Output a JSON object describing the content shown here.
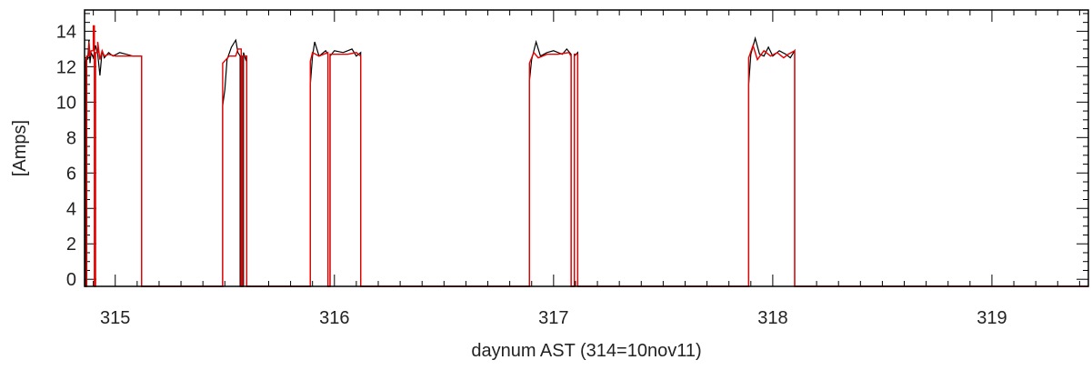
{
  "chart_data": {
    "type": "line",
    "title": "",
    "xlabel": "daynum AST (314=10nov11)",
    "ylabel": "[Amps]",
    "xlim": [
      314.86,
      319.44
    ],
    "ylim": [
      -0.4,
      15.2
    ],
    "x_ticks": [
      "315",
      "316",
      "317",
      "318",
      "319"
    ],
    "y_ticks": [
      "0",
      "2",
      "4",
      "6",
      "8",
      "10",
      "12",
      "14"
    ],
    "grid": false,
    "legend": "none",
    "series": [
      {
        "color": "#000000",
        "points": [
          [
            314.86,
            -0.4
          ],
          [
            314.865,
            -0.4
          ],
          [
            314.865,
            12.3
          ],
          [
            314.87,
            12.6
          ],
          [
            314.875,
            12.4
          ],
          [
            314.88,
            13.5
          ],
          [
            314.885,
            12.2
          ],
          [
            314.89,
            12.8
          ],
          [
            314.9,
            12.5
          ],
          [
            314.91,
            13.2
          ],
          [
            314.92,
            12.7
          ],
          [
            314.93,
            11.5
          ],
          [
            314.94,
            12.9
          ],
          [
            314.95,
            12.5
          ],
          [
            314.97,
            12.8
          ],
          [
            314.99,
            12.6
          ],
          [
            315.02,
            12.8
          ],
          [
            315.05,
            12.7
          ],
          [
            315.08,
            12.6
          ],
          [
            315.12,
            12.6
          ],
          [
            315.12,
            -0.4
          ],
          [
            315.49,
            -0.4
          ],
          [
            315.49,
            9.8
          ],
          [
            315.5,
            10.7
          ],
          [
            315.51,
            12.4
          ],
          [
            315.53,
            13.1
          ],
          [
            315.55,
            13.5
          ],
          [
            315.56,
            12.8
          ],
          [
            315.57,
            12.6
          ],
          [
            315.57,
            -0.4
          ],
          [
            315.585,
            -0.4
          ],
          [
            315.585,
            12.8
          ],
          [
            315.595,
            12.4
          ],
          [
            315.6,
            12.6
          ],
          [
            315.6,
            -0.4
          ],
          [
            315.89,
            -0.4
          ],
          [
            315.89,
            11.0
          ],
          [
            315.9,
            12.6
          ],
          [
            315.91,
            13.4
          ],
          [
            315.93,
            12.6
          ],
          [
            315.96,
            12.9
          ],
          [
            315.97,
            12.7
          ],
          [
            315.97,
            -0.4
          ],
          [
            315.98,
            -0.4
          ],
          [
            315.98,
            12.6
          ],
          [
            316.0,
            12.9
          ],
          [
            316.04,
            12.8
          ],
          [
            316.08,
            13.0
          ],
          [
            316.1,
            12.6
          ],
          [
            316.12,
            12.8
          ],
          [
            316.12,
            -0.4
          ],
          [
            316.89,
            -0.4
          ],
          [
            316.89,
            11.2
          ],
          [
            316.9,
            12.4
          ],
          [
            316.92,
            13.4
          ],
          [
            316.94,
            12.6
          ],
          [
            316.97,
            12.8
          ],
          [
            317.0,
            12.9
          ],
          [
            317.04,
            12.7
          ],
          [
            317.06,
            13.0
          ],
          [
            317.08,
            12.7
          ],
          [
            317.08,
            -0.4
          ],
          [
            317.095,
            -0.4
          ],
          [
            317.095,
            12.6
          ],
          [
            317.11,
            12.8
          ],
          [
            317.11,
            -0.4
          ],
          [
            317.89,
            -0.4
          ],
          [
            317.89,
            11.0
          ],
          [
            317.9,
            12.7
          ],
          [
            317.92,
            13.6
          ],
          [
            317.94,
            12.7
          ],
          [
            317.96,
            12.6
          ],
          [
            317.98,
            13.1
          ],
          [
            318.0,
            12.6
          ],
          [
            318.03,
            12.9
          ],
          [
            318.06,
            12.7
          ],
          [
            318.08,
            12.5
          ],
          [
            318.1,
            12.9
          ],
          [
            318.1,
            -0.4
          ],
          [
            319.44,
            -0.4
          ]
        ]
      },
      {
        "color": "#e60000",
        "points": [
          [
            314.86,
            -0.4
          ],
          [
            314.87,
            -0.4
          ],
          [
            314.87,
            12.6
          ],
          [
            314.88,
            12.6
          ],
          [
            314.88,
            13.4
          ],
          [
            314.885,
            12.6
          ],
          [
            314.89,
            12.9
          ],
          [
            314.9,
            12.9
          ],
          [
            314.9,
            14.3
          ],
          [
            314.905,
            14.3
          ],
          [
            314.905,
            -0.4
          ],
          [
            314.91,
            -0.4
          ],
          [
            314.91,
            12.8
          ],
          [
            314.92,
            12.8
          ],
          [
            314.92,
            13.4
          ],
          [
            314.93,
            12.4
          ],
          [
            314.94,
            12.9
          ],
          [
            314.95,
            12.6
          ],
          [
            314.97,
            12.7
          ],
          [
            315.0,
            12.6
          ],
          [
            315.05,
            12.6
          ],
          [
            315.12,
            12.6
          ],
          [
            315.12,
            -0.4
          ],
          [
            315.49,
            -0.4
          ],
          [
            315.49,
            12.2
          ],
          [
            315.52,
            12.6
          ],
          [
            315.55,
            12.6
          ],
          [
            315.56,
            13.0
          ],
          [
            315.575,
            13.0
          ],
          [
            315.575,
            -0.4
          ],
          [
            315.58,
            -0.4
          ],
          [
            315.58,
            12.6
          ],
          [
            315.6,
            12.6
          ],
          [
            315.6,
            -0.4
          ],
          [
            315.89,
            -0.4
          ],
          [
            315.89,
            12.3
          ],
          [
            315.9,
            12.8
          ],
          [
            315.93,
            12.6
          ],
          [
            315.97,
            12.8
          ],
          [
            315.97,
            -0.4
          ],
          [
            315.98,
            -0.4
          ],
          [
            315.98,
            12.7
          ],
          [
            316.02,
            12.7
          ],
          [
            316.06,
            12.7
          ],
          [
            316.1,
            12.8
          ],
          [
            316.12,
            12.6
          ],
          [
            316.12,
            -0.4
          ],
          [
            316.89,
            -0.4
          ],
          [
            316.89,
            12.2
          ],
          [
            316.91,
            12.8
          ],
          [
            316.93,
            12.5
          ],
          [
            316.97,
            12.7
          ],
          [
            317.02,
            12.7
          ],
          [
            317.07,
            12.8
          ],
          [
            317.08,
            12.6
          ],
          [
            317.08,
            -0.4
          ],
          [
            317.095,
            -0.4
          ],
          [
            317.095,
            12.7
          ],
          [
            317.11,
            12.7
          ],
          [
            317.11,
            -0.4
          ],
          [
            317.89,
            -0.4
          ],
          [
            317.89,
            12.5
          ],
          [
            317.91,
            13.2
          ],
          [
            317.93,
            12.4
          ],
          [
            317.96,
            12.9
          ],
          [
            317.99,
            12.6
          ],
          [
            318.02,
            12.8
          ],
          [
            318.05,
            12.5
          ],
          [
            318.07,
            12.7
          ],
          [
            318.1,
            12.9
          ],
          [
            318.1,
            -0.4
          ],
          [
            319.44,
            -0.4
          ]
        ]
      }
    ]
  }
}
